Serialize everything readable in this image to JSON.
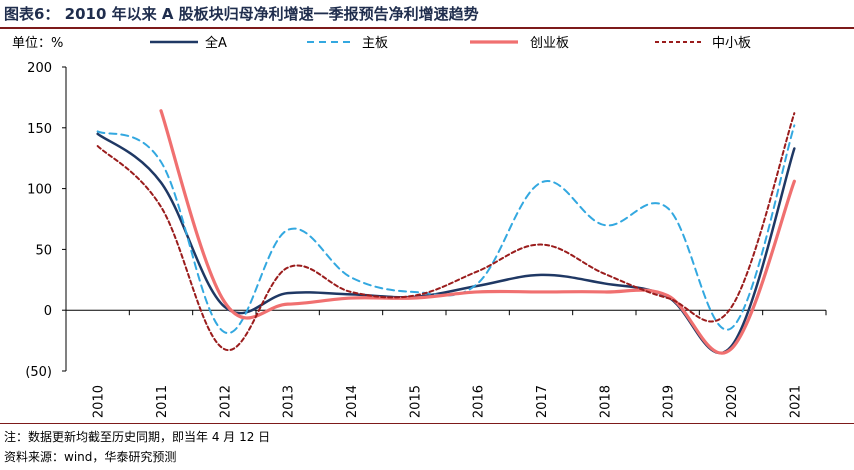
{
  "header": {
    "title": "图表6： 2010 年以来 A 股板块归母净利增速一季报预告净利增速趋势"
  },
  "chart_data": {
    "type": "line",
    "unit_label": "单位：%",
    "categories": [
      "2010",
      "2011",
      "2012",
      "2013",
      "2014",
      "2015",
      "2016",
      "2017",
      "2018",
      "2019",
      "2020",
      "2021"
    ],
    "ylim": [
      -50,
      200
    ],
    "yticks": [
      -50,
      0,
      50,
      100,
      150,
      200
    ],
    "ytick_labels": [
      "(50)",
      "0",
      "50",
      "100",
      "150",
      "200"
    ],
    "grid": false,
    "legend_position": "top",
    "series": [
      {
        "name": "全A",
        "color": "#1f3864",
        "dash": "solid",
        "values": [
          145,
          105,
          3,
          14,
          13,
          11,
          20,
          29,
          22,
          11,
          -30,
          133
        ]
      },
      {
        "name": "主板",
        "color": "#33a8e0",
        "dash": "dashed",
        "values": [
          147,
          122,
          -18,
          66,
          27,
          15,
          22,
          105,
          70,
          84,
          -15,
          152
        ]
      },
      {
        "name": "创业板",
        "color": "#f07070",
        "dash": "solid",
        "values": [
          null,
          164,
          7,
          5,
          10,
          10,
          15,
          15,
          15,
          12,
          -32,
          106
        ]
      },
      {
        "name": "中小板",
        "color": "#9a1c1c",
        "dash": "dotted",
        "values": [
          135,
          85,
          -32,
          35,
          15,
          12,
          32,
          54,
          30,
          10,
          2,
          162
        ]
      }
    ]
  },
  "footer": {
    "note": "注：数据更新均截至历史同期，即当年 4 月 12 日",
    "source": "资料来源：wind，华泰研究预测"
  }
}
